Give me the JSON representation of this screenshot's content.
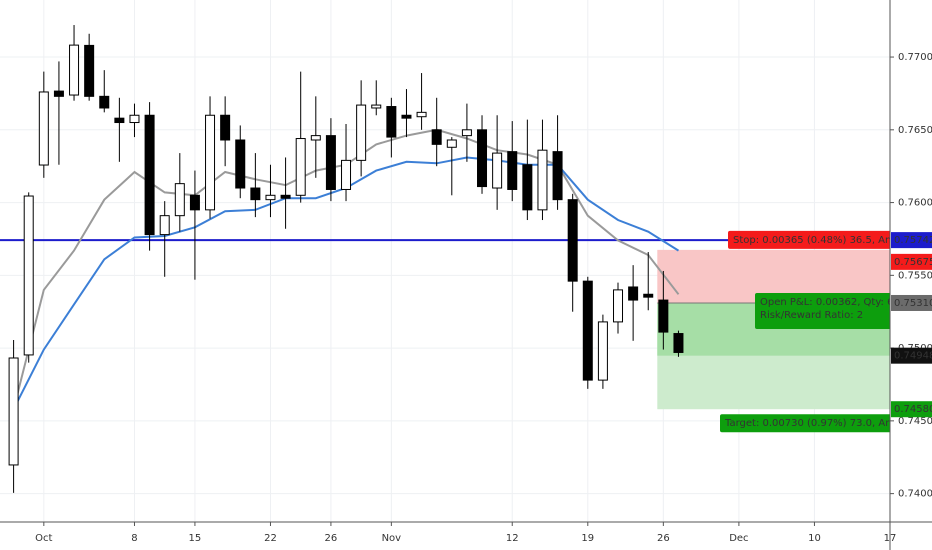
{
  "chart_data": {
    "type": "candlestick",
    "x": [
      0,
      1,
      2,
      3,
      4,
      5,
      6,
      7,
      8,
      9,
      10,
      11,
      12,
      13,
      14,
      15,
      16,
      17,
      18,
      19,
      20,
      21,
      22,
      23,
      24,
      25,
      26,
      27,
      28,
      29,
      30,
      31,
      32,
      33,
      34,
      35,
      36,
      37,
      38,
      39,
      40,
      41,
      42,
      43,
      44
    ],
    "open": [
      0.74197,
      0.74953,
      0.76258,
      0.76766,
      0.76739,
      0.7708,
      0.7673,
      0.7658,
      0.7655,
      0.766,
      0.7578,
      0.7591,
      0.7605,
      0.7595,
      0.766,
      0.7643,
      0.761,
      0.7602,
      0.7605,
      0.7605,
      0.7643,
      0.7646,
      0.7609,
      0.7629,
      0.7665,
      0.7666,
      0.766,
      0.7659,
      0.765,
      0.7638,
      0.7646,
      0.765,
      0.761,
      0.7635,
      0.7626,
      0.7595,
      0.7635,
      0.7602,
      0.7546,
      0.7478,
      0.7518,
      0.7542,
      0.7537,
      0.7533,
      0.751
    ],
    "high": [
      0.75056,
      0.7607,
      0.769,
      0.7697,
      0.7722,
      0.7716,
      0.7691,
      0.7672,
      0.7668,
      0.7669,
      0.7601,
      0.7634,
      0.7622,
      0.7673,
      0.7673,
      0.7653,
      0.7634,
      0.7626,
      0.7631,
      0.769,
      0.7673,
      0.7658,
      0.7654,
      0.7684,
      0.7684,
      0.7672,
      0.7678,
      0.7689,
      0.7672,
      0.7645,
      0.7668,
      0.766,
      0.766,
      0.7656,
      0.7657,
      0.7657,
      0.766,
      0.7606,
      0.7549,
      0.7523,
      0.7545,
      0.7557,
      0.7566,
      0.7553,
      0.7512
    ],
    "low": [
      0.74005,
      0.749,
      0.7617,
      0.7626,
      0.767,
      0.767,
      0.7662,
      0.7628,
      0.7645,
      0.7567,
      0.7549,
      0.758,
      0.7547,
      0.7589,
      0.7625,
      0.7603,
      0.759,
      0.759,
      0.7582,
      0.76,
      0.7617,
      0.7601,
      0.7601,
      0.7618,
      0.766,
      0.7631,
      0.7645,
      0.765,
      0.7625,
      0.7605,
      0.7628,
      0.7606,
      0.7595,
      0.7601,
      0.7588,
      0.7588,
      0.7595,
      0.7525,
      0.7472,
      0.7472,
      0.751,
      0.7505,
      0.7526,
      0.7499,
      0.7494
    ],
    "close": [
      0.74932,
      0.76045,
      0.7676,
      0.7673,
      0.77082,
      0.7673,
      0.7665,
      0.7655,
      0.766,
      0.7578,
      0.7591,
      0.7613,
      0.7595,
      0.766,
      0.7643,
      0.761,
      0.7602,
      0.7605,
      0.7603,
      0.7644,
      0.7646,
      0.7609,
      0.7629,
      0.7667,
      0.7667,
      0.7645,
      0.7658,
      0.7662,
      0.764,
      0.7643,
      0.765,
      0.7611,
      0.7634,
      0.7609,
      0.7595,
      0.7636,
      0.7602,
      0.7546,
      0.7478,
      0.7518,
      0.754,
      0.7533,
      0.7535,
      0.7511,
      0.7497
    ],
    "up_color": "#ffffff",
    "down_color": "#000000",
    "series": [
      {
        "color": "#9a9a9a",
        "x": [
          0,
          2,
          4,
          6,
          8,
          10,
          12,
          14,
          16,
          18,
          20,
          22,
          24,
          26,
          28,
          30,
          32,
          34,
          36,
          38,
          40,
          42,
          44
        ],
        "values": [
          0.7458,
          0.754,
          0.7567,
          0.7602,
          0.7621,
          0.7607,
          0.7605,
          0.7621,
          0.7616,
          0.7612,
          0.7622,
          0.7626,
          0.764,
          0.7646,
          0.765,
          0.7644,
          0.7636,
          0.7633,
          0.7626,
          0.7591,
          0.7574,
          0.7564,
          0.7537
        ]
      },
      {
        "color": "#3c7fd6",
        "x": [
          0,
          2,
          4,
          6,
          8,
          10,
          12,
          14,
          16,
          18,
          20,
          22,
          24,
          26,
          28,
          30,
          32,
          34,
          36,
          38,
          40,
          42,
          44
        ],
        "values": [
          0.7458,
          0.7499,
          0.753,
          0.7561,
          0.7576,
          0.7577,
          0.7583,
          0.7594,
          0.7595,
          0.7603,
          0.7603,
          0.761,
          0.7622,
          0.7628,
          0.7627,
          0.7631,
          0.7629,
          0.7626,
          0.7626,
          0.7602,
          0.7588,
          0.758,
          0.7567
        ]
      }
    ],
    "hline": {
      "value": 0.75742,
      "color": "#1c1ccc"
    },
    "position": {
      "x": 43,
      "stop": 0.75675,
      "entry": {
        "value": 0.7531,
        "label": "0.75310"
      },
      "current": 0.74948,
      "target": {
        "value": 0.7458,
        "label": "0.74580"
      },
      "stop_label": "Stop: 0.00365 (0.48%) 36.5, Am",
      "pnl_label": "Open P&L: 0.00362, Qty: 6",
      "rr_label": "Risk/Reward Ratio: 2",
      "target_label": "Target: 0.00730 (0.97%) 73.0, Am"
    },
    "xlim": [
      -0.9,
      58
    ],
    "ylim": [
      0.73805,
      0.77392
    ],
    "xticks": [
      {
        "value": 2,
        "label": "Oct"
      },
      8,
      {
        "value": 12,
        "label": "15"
      },
      {
        "value": 17,
        "label": "22"
      },
      {
        "value": 21,
        "label": "26"
      },
      {
        "value": 25,
        "label": "Nov"
      },
      {
        "value": 33,
        "label": "12"
      },
      {
        "value": 38,
        "label": "19"
      },
      {
        "value": 43,
        "label": "26"
      },
      {
        "value": 48,
        "label": "Dec"
      },
      {
        "value": 53,
        "label": "10"
      },
      {
        "value": 58,
        "label": "17"
      }
    ],
    "yticks": [
      {
        "value": 0.74,
        "label": "0.74000"
      },
      {
        "value": 0.745,
        "label": "0.74500"
      },
      {
        "value": 0.75,
        "label": "0.75000"
      },
      {
        "value": 0.755,
        "label": "0.75500"
      },
      {
        "value": 0.76,
        "label": "0.76000"
      },
      {
        "value": 0.765,
        "label": "0.76500"
      },
      {
        "value": 0.77,
        "label": "0.77000"
      }
    ]
  }
}
